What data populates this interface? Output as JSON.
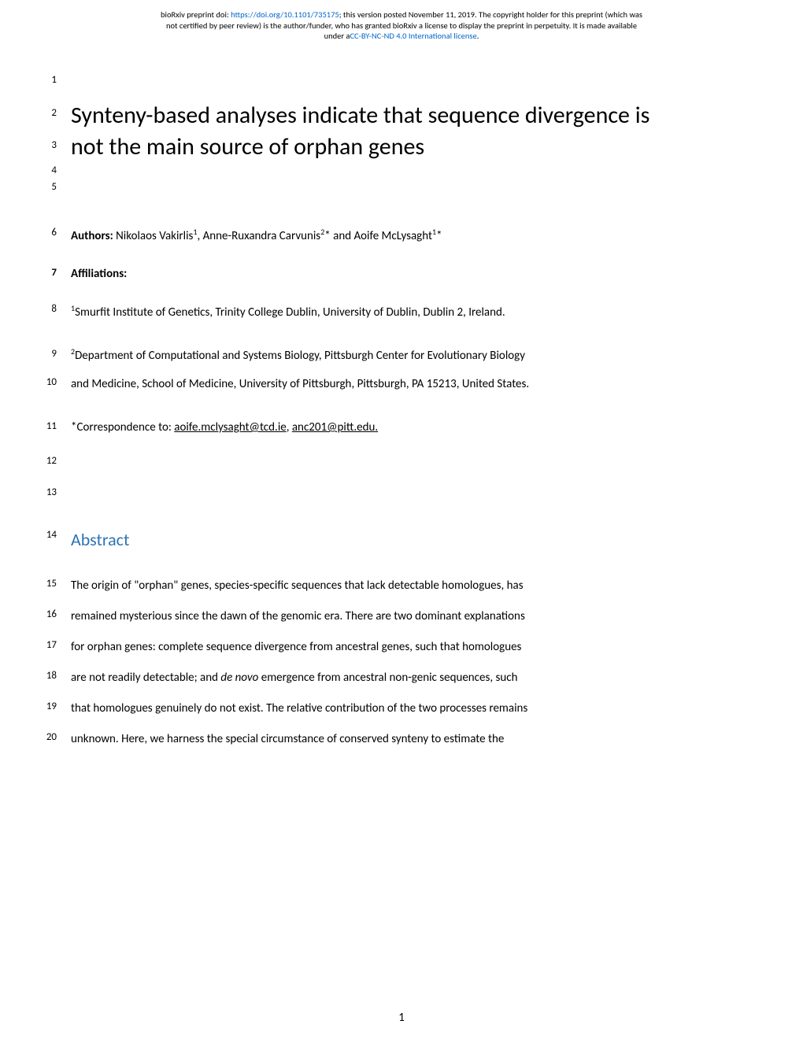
{
  "header": {
    "line1_prefix": "bioRxiv preprint doi: ",
    "doi_url": "https://doi.org/10.1101/735175",
    "line1_suffix": "; this version posted November 11, 2019. The copyright holder for this preprint (which was",
    "line2": "not certified by peer review) is the author/funder, who has granted bioRxiv a license to display the preprint in perpetuity. It is made available",
    "line3_prefix": "under a",
    "license_text": "CC-BY-NC-ND 4.0 International license",
    "line3_suffix": "."
  },
  "title": {
    "line1": "Synteny-based analyses indicate that sequence divergence is",
    "line2": "not the main source of orphan genes"
  },
  "authors": {
    "label": "Authors: ",
    "text": "Nikolaos Vakirlis",
    "sup1": "1",
    "mid1": ", Anne-Ruxandra Carvunis",
    "sup2": "2",
    "mid2": "* and Aoife McLysaght",
    "sup3": "1",
    "suffix": "*"
  },
  "affiliations": {
    "heading": "Affiliations:",
    "aff1_sup": "1",
    "aff1_text": "Smurfit Institute of Genetics, Trinity College Dublin, University of Dublin, Dublin 2, Ireland.",
    "aff2_sup": "2",
    "aff2_line1": "Department of Computational and Systems Biology, Pittsburgh Center for Evolutionary Biology",
    "aff2_line2": "and Medicine, School of Medicine, University of Pittsburgh, Pittsburgh, PA 15213, United States."
  },
  "correspondence": {
    "prefix": "*Correspondence to: ",
    "email1": "aoife.mclysaght@tcd.ie",
    "separator": ", ",
    "email2": "anc201@pitt.edu",
    "suffix": "."
  },
  "abstract": {
    "heading": "Abstract",
    "line1": "The origin of \"orphan\" genes, species-specific sequences that lack detectable homologues, has",
    "line2": "remained mysterious since the dawn of the genomic era. There are two dominant explanations",
    "line3": "for orphan genes: complete sequence divergence from ancestral genes, such that homologues",
    "line4_prefix": "are not readily detectable; and ",
    "line4_italic": "de novo",
    "line4_suffix": " emergence from ancestral non-genic sequences, such",
    "line5": "that homologues genuinely do not exist. The relative contribution of the two processes remains",
    "line6": "unknown. Here, we harness the special circumstance of conserved synteny to estimate the"
  },
  "line_numbers": {
    "ln1": "1",
    "ln2": "2",
    "ln3": "3",
    "ln4": "4",
    "ln5": "5",
    "ln6": "6",
    "ln7": "7",
    "ln8": "8",
    "ln9": "9",
    "ln10": "10",
    "ln11": "11",
    "ln12": "12",
    "ln13": "13",
    "ln14": "14",
    "ln15": "15",
    "ln16": "16",
    "ln17": "17",
    "ln18": "18",
    "ln19": "19",
    "ln20": "20"
  },
  "page_number": "1"
}
